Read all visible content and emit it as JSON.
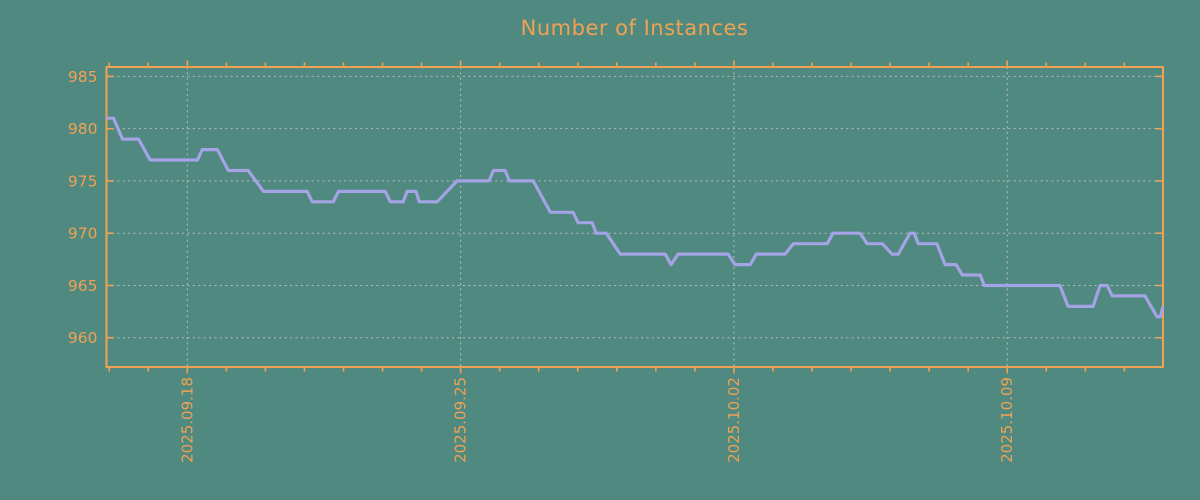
{
  "figure": {
    "background_color": "#4f897f"
  },
  "chart_data": {
    "type": "line",
    "title": "Number of Instances",
    "title_color": "#f0a254",
    "axis_color": "#f0a254",
    "line_color": "#a3a3e6",
    "grid_color": "#c9c9c9",
    "xlabel": "",
    "ylabel": "",
    "legend": "none",
    "grid": "dotted",
    "x_unit": "days since 2025-09-15 00:00",
    "x_range": [
      0.93,
      27.99
    ],
    "y_range": [
      957.2,
      985.9
    ],
    "y_ticks": [
      960,
      965,
      970,
      975,
      980,
      985
    ],
    "x_major_ticks": [
      {
        "t": 3,
        "label": "2025.09.18"
      },
      {
        "t": 10,
        "label": "2025.09.25"
      },
      {
        "t": 17,
        "label": "2025.10.02"
      },
      {
        "t": 24,
        "label": "2025.10.09"
      }
    ],
    "x_minor_ticks": [
      1,
      2,
      4,
      5,
      6,
      7,
      8,
      9,
      11,
      12,
      13,
      14,
      15,
      16,
      18,
      19,
      20,
      21,
      22,
      23,
      25,
      26,
      27
    ],
    "series": [
      {
        "name": "instances",
        "points": [
          [
            0.93,
            981
          ],
          [
            1.11,
            981
          ],
          [
            1.34,
            979
          ],
          [
            1.75,
            979
          ],
          [
            2.05,
            977
          ],
          [
            3.26,
            977
          ],
          [
            3.38,
            978
          ],
          [
            3.77,
            978
          ],
          [
            4.05,
            976
          ],
          [
            4.56,
            976
          ],
          [
            4.95,
            974
          ],
          [
            6.07,
            974
          ],
          [
            6.2,
            973
          ],
          [
            6.74,
            973
          ],
          [
            6.87,
            974
          ],
          [
            8.07,
            974
          ],
          [
            8.2,
            973
          ],
          [
            8.53,
            973
          ],
          [
            8.63,
            974
          ],
          [
            8.86,
            974
          ],
          [
            8.94,
            973
          ],
          [
            9.4,
            973
          ],
          [
            9.91,
            975
          ],
          [
            10.73,
            975
          ],
          [
            10.84,
            976
          ],
          [
            11.14,
            976
          ],
          [
            11.25,
            975
          ],
          [
            11.86,
            975
          ],
          [
            12.3,
            972
          ],
          [
            12.88,
            972
          ],
          [
            13.01,
            971
          ],
          [
            13.37,
            971
          ],
          [
            13.47,
            970
          ],
          [
            13.73,
            970
          ],
          [
            14.09,
            968
          ],
          [
            15.24,
            968
          ],
          [
            15.39,
            967
          ],
          [
            15.57,
            968
          ],
          [
            16.85,
            968
          ],
          [
            17.03,
            967
          ],
          [
            17.42,
            967
          ],
          [
            17.57,
            968
          ],
          [
            18.31,
            968
          ],
          [
            18.52,
            969
          ],
          [
            19.39,
            969
          ],
          [
            19.54,
            970
          ],
          [
            20.23,
            970
          ],
          [
            20.41,
            969
          ],
          [
            20.8,
            969
          ],
          [
            21.05,
            968
          ],
          [
            21.21,
            968
          ],
          [
            21.51,
            970
          ],
          [
            21.62,
            970
          ],
          [
            21.72,
            969
          ],
          [
            22.2,
            969
          ],
          [
            22.41,
            967
          ],
          [
            22.69,
            967
          ],
          [
            22.85,
            966
          ],
          [
            23.31,
            966
          ],
          [
            23.41,
            965
          ],
          [
            25.35,
            965
          ],
          [
            25.56,
            963
          ],
          [
            26.2,
            963
          ],
          [
            26.38,
            965
          ],
          [
            26.56,
            965
          ],
          [
            26.69,
            964
          ],
          [
            27.53,
            964
          ],
          [
            27.84,
            962
          ],
          [
            27.92,
            962
          ],
          [
            27.99,
            963
          ]
        ]
      }
    ]
  }
}
